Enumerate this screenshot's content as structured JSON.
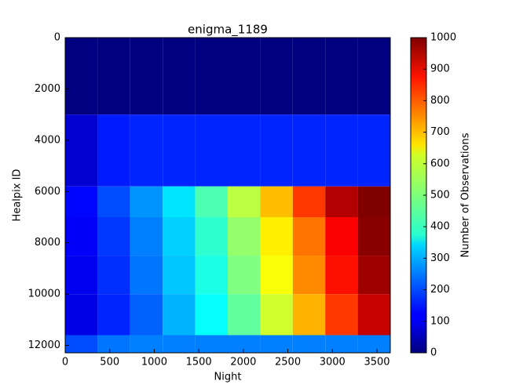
{
  "chart_data": {
    "type": "heatmap",
    "title": "enigma_1189",
    "xlabel": "Night",
    "ylabel": "Healpix ID",
    "colorbar_label": "Number of Observations",
    "xbins": [
      0,
      365,
      730,
      1095,
      1460,
      1825,
      2190,
      2555,
      2920,
      3285,
      3650
    ],
    "ybins": [
      0,
      3000,
      5800,
      7000,
      8500,
      10000,
      11600,
      12288
    ],
    "values": [
      [
        0,
        0,
        0,
        0,
        0,
        0,
        0,
        0,
        0,
        0
      ],
      [
        80,
        150,
        160,
        160,
        160,
        160,
        160,
        160,
        160,
        160
      ],
      [
        130,
        200,
        270,
        350,
        450,
        560,
        690,
        820,
        950,
        1000
      ],
      [
        120,
        180,
        250,
        330,
        420,
        520,
        640,
        760,
        880,
        990
      ],
      [
        110,
        170,
        240,
        320,
        400,
        500,
        620,
        740,
        860,
        970
      ],
      [
        100,
        160,
        220,
        300,
        380,
        470,
        580,
        700,
        820,
        930
      ],
      [
        200,
        240,
        250,
        250,
        250,
        250,
        250,
        250,
        250,
        250
      ]
    ],
    "xlim": [
      0,
      3650
    ],
    "xticks": [
      0,
      500,
      1000,
      1500,
      2000,
      2500,
      3000,
      3500
    ],
    "ylim": [
      0,
      12288
    ],
    "yticks": [
      0,
      2000,
      4000,
      6000,
      8000,
      10000,
      12000
    ],
    "clim": [
      0,
      1000
    ],
    "cticks": [
      0,
      100,
      200,
      300,
      400,
      500,
      600,
      700,
      800,
      900,
      1000
    ],
    "colormap": "jet"
  }
}
